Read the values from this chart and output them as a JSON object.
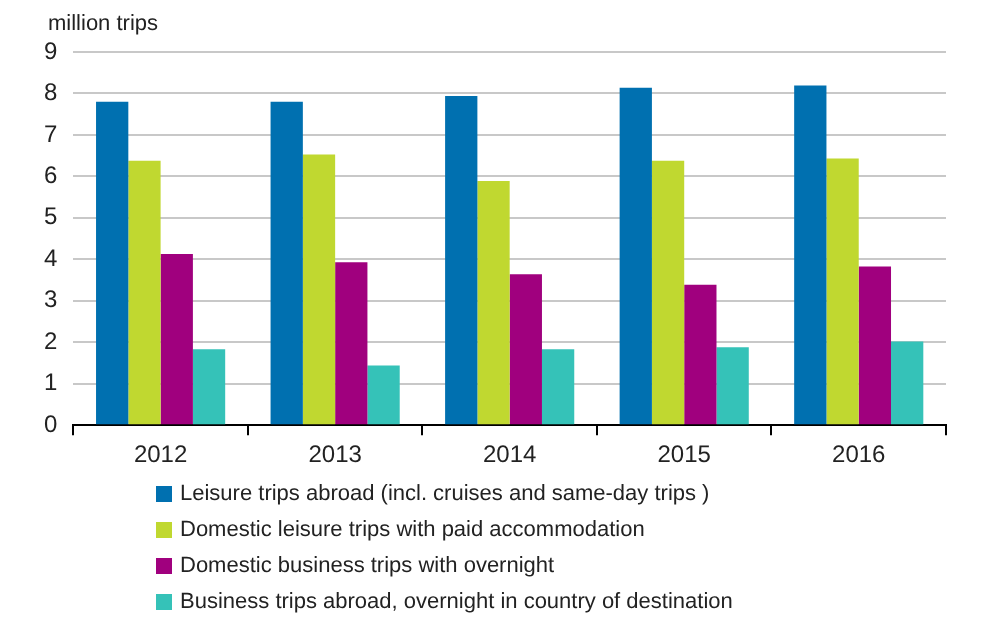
{
  "chart_data": {
    "type": "bar",
    "ylabel": "million trips",
    "categories": [
      "2012",
      "2013",
      "2014",
      "2015",
      "2016"
    ],
    "series": [
      {
        "name": "Leisure trips abroad (incl. cruises and same-day trips )",
        "color": "#0070b0",
        "values": [
          7.8,
          7.8,
          7.94,
          8.14,
          8.19
        ]
      },
      {
        "name": "Domestic leisure trips with paid accommodation",
        "color": "#c0d830",
        "values": [
          6.38,
          6.53,
          5.89,
          6.38,
          6.43
        ]
      },
      {
        "name": "Domestic business trips with overnight",
        "color": "#a0007e",
        "values": [
          4.13,
          3.93,
          3.64,
          3.39,
          3.83
        ]
      },
      {
        "name": "Business trips abroad, overnight in country of destination",
        "color": "#35c2b8",
        "values": [
          1.83,
          1.44,
          1.83,
          1.88,
          2.02
        ]
      }
    ],
    "ylim": [
      0,
      9
    ],
    "yticks": [
      0,
      1,
      2,
      3,
      4,
      5,
      6,
      7,
      8,
      9
    ],
    "grid": "y",
    "legend": "bottom"
  }
}
